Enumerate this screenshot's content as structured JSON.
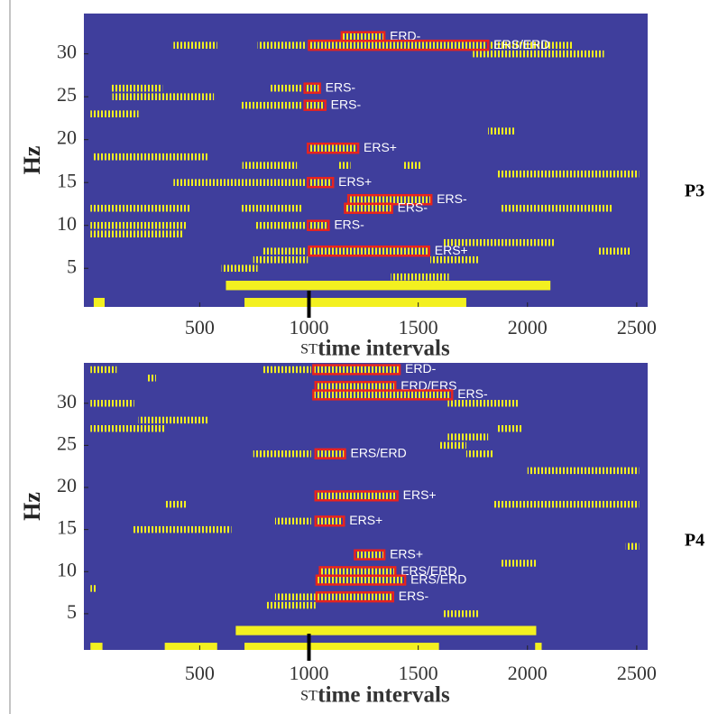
{
  "chart_data": [
    {
      "type": "raster",
      "panel_label": "P3",
      "y_label": "Hz",
      "x_label": "time intervals",
      "marker": {
        "x": 1000,
        "label": "ST"
      },
      "xlim": [
        -30,
        2550
      ],
      "ylim": [
        0.5,
        34.7
      ],
      "xticks": [
        500,
        1000,
        1500,
        2000,
        2500
      ],
      "yticks": [
        5,
        10,
        15,
        20,
        25,
        30
      ],
      "background": "#3f3e9c",
      "color": "#f3f020",
      "box_color": "#e8231e",
      "stripes": [
        [
          31,
          380,
          580
        ],
        [
          31,
          765,
          990
        ],
        [
          31,
          1820,
          2205
        ],
        [
          30,
          1750,
          2350
        ],
        [
          26,
          90,
          330
        ],
        [
          26,
          825,
          970
        ],
        [
          25,
          100,
          565
        ],
        [
          24,
          685,
          970
        ],
        [
          23,
          0,
          220
        ],
        [
          21,
          1820,
          1940
        ],
        [
          18,
          10,
          535
        ],
        [
          17,
          695,
          945
        ],
        [
          17,
          1130,
          1190
        ],
        [
          17,
          1435,
          1515
        ],
        [
          16,
          1860,
          2510
        ],
        [
          15,
          380,
          990
        ],
        [
          12,
          0,
          460
        ],
        [
          12,
          685,
          970
        ],
        [
          12,
          1880,
          2385
        ],
        [
          10,
          0,
          440
        ],
        [
          10,
          755,
          990
        ],
        [
          9,
          0,
          420
        ],
        [
          8,
          1615,
          2125
        ],
        [
          7,
          785,
          990
        ],
        [
          7,
          2325,
          2470
        ],
        [
          6,
          745,
          995
        ],
        [
          6,
          1555,
          1780
        ],
        [
          5,
          600,
          765
        ],
        [
          4,
          1375,
          1640
        ]
      ],
      "blocks": [
        [
          3,
          620,
          2105
        ],
        [
          1,
          15,
          65
        ],
        [
          1,
          705,
          1720
        ]
      ],
      "boxes": [
        {
          "label": "ERD-",
          "y": 32,
          "x0": 1150,
          "x1": 1345
        },
        {
          "label": "ERS/ERD",
          "y": 31,
          "x0": 1000,
          "x1": 1820
        },
        {
          "label": "ERS-",
          "y": 26,
          "x0": 980,
          "x1": 1050
        },
        {
          "label": "ERS-",
          "y": 24,
          "x0": 980,
          "x1": 1075
        },
        {
          "label": "ERS+",
          "y": 19,
          "x0": 995,
          "x1": 1225
        },
        {
          "label": "ERS+",
          "y": 15,
          "x0": 995,
          "x1": 1110
        },
        {
          "label": "ERS-",
          "y": 13,
          "x0": 1180,
          "x1": 1560
        },
        {
          "label": "ERS-",
          "y": 12,
          "x0": 1165,
          "x1": 1380
        },
        {
          "label": "ERS-",
          "y": 10,
          "x0": 995,
          "x1": 1090
        },
        {
          "label": "ERS+",
          "y": 7,
          "x0": 1000,
          "x1": 1550
        }
      ]
    },
    {
      "type": "raster",
      "panel_label": "P4",
      "y_label": "Hz",
      "x_label": "time intervals",
      "marker": {
        "x": 1000,
        "label": "ST"
      },
      "xlim": [
        -30,
        2550
      ],
      "ylim": [
        0.7,
        34.8
      ],
      "xticks": [
        500,
        1000,
        1500,
        2000,
        2500
      ],
      "yticks": [
        5,
        10,
        15,
        20,
        25,
        30
      ],
      "background": "#3f3e9c",
      "color": "#f3f020",
      "box_color": "#e8231e",
      "stripes": [
        [
          34,
          0,
          120
        ],
        [
          34,
          785,
          1010
        ],
        [
          33,
          260,
          300
        ],
        [
          30,
          0,
          200
        ],
        [
          30,
          1635,
          1960
        ],
        [
          28,
          220,
          540
        ],
        [
          27,
          0,
          340
        ],
        [
          27,
          1860,
          1980
        ],
        [
          26,
          1635,
          1820
        ],
        [
          25,
          1595,
          1720
        ],
        [
          24,
          745,
          1010
        ],
        [
          24,
          1720,
          1840
        ],
        [
          22,
          2000,
          2510
        ],
        [
          18,
          340,
          440
        ],
        [
          18,
          1840,
          2510
        ],
        [
          16,
          845,
          1010
        ],
        [
          15,
          195,
          645
        ],
        [
          13,
          2450,
          2510
        ],
        [
          11,
          1880,
          2040
        ],
        [
          8,
          0,
          25
        ],
        [
          7,
          845,
          1030
        ],
        [
          6,
          805,
          1030
        ],
        [
          5,
          1615,
          1780
        ]
      ],
      "blocks": [
        [
          3,
          665,
          2040
        ],
        [
          1,
          0,
          55
        ],
        [
          1,
          340,
          580
        ],
        [
          1,
          705,
          1595
        ],
        [
          1,
          2035,
          2065
        ]
      ],
      "boxes": [
        {
          "label": "ERD-",
          "y": 34,
          "x0": 1020,
          "x1": 1415
        },
        {
          "label": "ERD/ERS",
          "y": 32,
          "x0": 1030,
          "x1": 1395
        },
        {
          "label": "ERS-",
          "y": 31,
          "x0": 1020,
          "x1": 1655
        },
        {
          "label": "ERS/ERD",
          "y": 24,
          "x0": 1030,
          "x1": 1165
        },
        {
          "label": "ERS+",
          "y": 19,
          "x0": 1030,
          "x1": 1405
        },
        {
          "label": "ERS+",
          "y": 16,
          "x0": 1030,
          "x1": 1160
        },
        {
          "label": "ERS+",
          "y": 12,
          "x0": 1210,
          "x1": 1345
        },
        {
          "label": "ERS/ERD",
          "y": 10,
          "x0": 1050,
          "x1": 1395
        },
        {
          "label": "ERS/ERD",
          "y": 9,
          "x0": 1035,
          "x1": 1440
        },
        {
          "label": "ERS-",
          "y": 7,
          "x0": 1035,
          "x1": 1385
        }
      ]
    }
  ]
}
